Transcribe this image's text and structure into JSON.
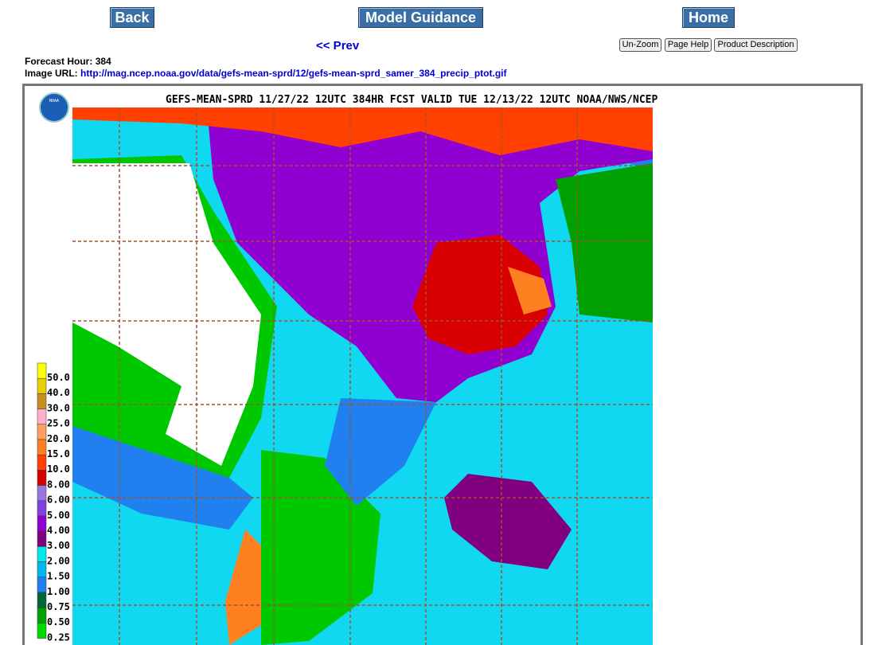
{
  "nav": {
    "back": "Back",
    "model_guidance": "Model Guidance",
    "home": "Home",
    "prev": "<< Prev"
  },
  "buttons": {
    "unzoom": "Un-Zoom",
    "page_help": "Page Help",
    "product_description": "Product Description"
  },
  "info": {
    "forecast_hour_label": "Forecast Hour:",
    "forecast_hour": "384",
    "image_url_label": "Image URL:",
    "image_url": "http://mag.ncep.noaa.gov/data/gefs-mean-sprd/12/gefs-mean-sprd_samer_384_precip_ptot.gif"
  },
  "map": {
    "logo": "NOAA",
    "title": "GEFS-MEAN-SPRD 11/27/22 12UTC 384HR FCST VALID TUE 12/13/22 12UTC NOAA/NWS/NCEP",
    "legend": [
      {
        "label": "50.0",
        "color": "#ffff00"
      },
      {
        "label": "40.0",
        "color": "#e8d000"
      },
      {
        "label": "30.0",
        "color": "#c89020"
      },
      {
        "label": "25.0",
        "color": "#ffb0c8"
      },
      {
        "label": "20.0",
        "color": "#ffa060"
      },
      {
        "label": "15.0",
        "color": "#ff8020"
      },
      {
        "label": "10.0",
        "color": "#ff4000"
      },
      {
        "label": "8.00",
        "color": "#d80000"
      },
      {
        "label": "6.00",
        "color": "#9878e0"
      },
      {
        "label": "5.00",
        "color": "#8040e0"
      },
      {
        "label": "4.00",
        "color": "#9000d0"
      },
      {
        "label": "3.00",
        "color": "#800080"
      },
      {
        "label": "2.00",
        "color": "#00e8e8"
      },
      {
        "label": "1.50",
        "color": "#00b8f0"
      },
      {
        "label": "1.00",
        "color": "#2080f0"
      },
      {
        "label": "0.75",
        "color": "#006838"
      },
      {
        "label": "0.50",
        "color": "#00a000"
      },
      {
        "label": "0.25",
        "color": "#00d800"
      }
    ]
  }
}
